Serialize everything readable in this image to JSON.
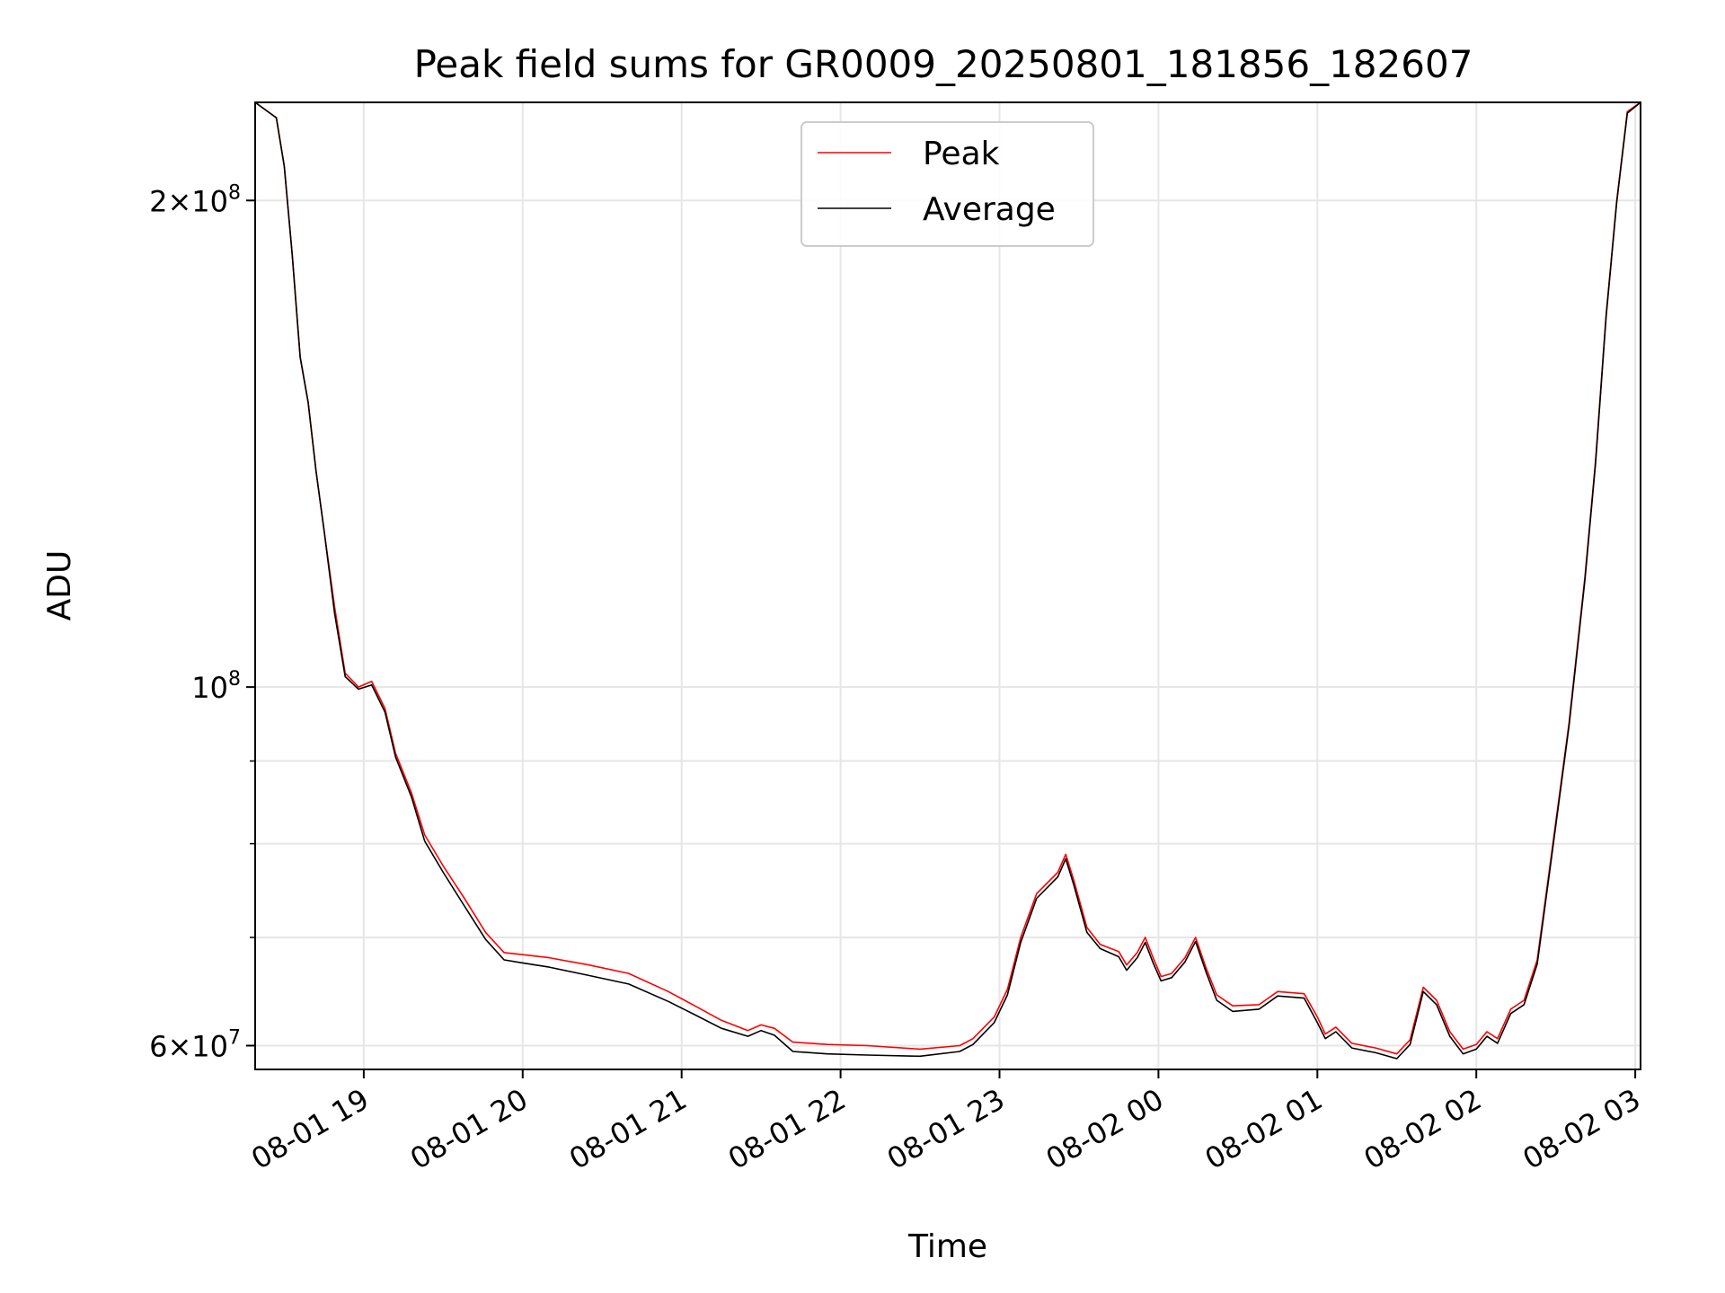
{
  "chart_data": {
    "type": "line",
    "title": "Peak field sums for GR0009_20250801_181856_182607",
    "xlabel": "Time",
    "ylabel": "ADU",
    "y_scale": "log",
    "xlim": [
      "2025-08-01 18:19",
      "2025-08-02 03:02"
    ],
    "ylim": [
      58000000,
      230000000
    ],
    "x_ticks": [
      "08-01 19",
      "08-01 20",
      "08-01 21",
      "08-01 22",
      "08-01 23",
      "08-02 00",
      "08-02 01",
      "08-02 02",
      "08-02 03"
    ],
    "x_tick_values": [
      "2025-08-01 19:00",
      "2025-08-01 20:00",
      "2025-08-01 21:00",
      "2025-08-01 22:00",
      "2025-08-01 23:00",
      "2025-08-02 00:00",
      "2025-08-02 01:00",
      "2025-08-02 02:00",
      "2025-08-02 03:00"
    ],
    "y_ticks_major": [
      {
        "value": 60000000,
        "mantissa": "6",
        "exp": "7"
      },
      {
        "value": 100000000,
        "mantissa": "",
        "exp": "8"
      },
      {
        "value": 200000000,
        "mantissa": "2",
        "exp": "8"
      }
    ],
    "y_gridlines_minor": [
      70000000,
      80000000,
      90000000
    ],
    "grid": true,
    "legend_position": "upper center",
    "series": [
      {
        "name": "Peak",
        "color": "#ff0000",
        "points": [
          [
            "2025-08-01 18:19",
            230000000
          ],
          [
            "2025-08-01 18:27",
            225000000
          ],
          [
            "2025-08-01 18:30",
            210000000
          ],
          [
            "2025-08-01 18:33",
            185000000
          ],
          [
            "2025-08-01 18:36",
            160000000
          ],
          [
            "2025-08-01 18:39",
            150000000
          ],
          [
            "2025-08-01 18:42",
            136000000
          ],
          [
            "2025-08-01 18:45",
            125000000
          ],
          [
            "2025-08-01 18:49",
            112000000
          ],
          [
            "2025-08-01 18:53",
            102000000
          ],
          [
            "2025-08-01 18:58",
            100000000
          ],
          [
            "2025-08-01 19:03",
            100800000
          ],
          [
            "2025-08-01 19:08",
            97000000
          ],
          [
            "2025-08-01 19:12",
            91000000
          ],
          [
            "2025-08-01 19:18",
            86000000
          ],
          [
            "2025-08-01 19:23",
            81000000
          ],
          [
            "2025-08-01 19:30",
            77500000
          ],
          [
            "2025-08-01 19:38",
            74000000
          ],
          [
            "2025-08-01 19:46",
            70500000
          ],
          [
            "2025-08-01 19:53",
            68500000
          ],
          [
            "2025-08-01 20:00",
            68300000
          ],
          [
            "2025-08-01 20:10",
            68000000
          ],
          [
            "2025-08-01 20:25",
            67300000
          ],
          [
            "2025-08-01 20:40",
            66500000
          ],
          [
            "2025-08-01 20:55",
            64800000
          ],
          [
            "2025-08-01 21:05",
            63500000
          ],
          [
            "2025-08-01 21:15",
            62200000
          ],
          [
            "2025-08-01 21:25",
            61300000
          ],
          [
            "2025-08-01 21:30",
            61800000
          ],
          [
            "2025-08-01 21:35",
            61500000
          ],
          [
            "2025-08-01 21:42",
            60300000
          ],
          [
            "2025-08-01 21:55",
            60100000
          ],
          [
            "2025-08-01 22:10",
            60000000
          ],
          [
            "2025-08-01 22:30",
            59700000
          ],
          [
            "2025-08-01 22:45",
            60000000
          ],
          [
            "2025-08-01 22:50",
            60600000
          ],
          [
            "2025-08-01 22:58",
            62500000
          ],
          [
            "2025-08-01 23:03",
            65000000
          ],
          [
            "2025-08-01 23:08",
            70000000
          ],
          [
            "2025-08-01 23:14",
            74500000
          ],
          [
            "2025-08-01 23:22",
            76800000
          ],
          [
            "2025-08-01 23:25",
            78800000
          ],
          [
            "2025-08-01 23:28",
            76000000
          ],
          [
            "2025-08-01 23:33",
            71000000
          ],
          [
            "2025-08-01 23:38",
            69300000
          ],
          [
            "2025-08-01 23:45",
            68600000
          ],
          [
            "2025-08-01 23:48",
            67300000
          ],
          [
            "2025-08-01 23:52",
            68500000
          ],
          [
            "2025-08-01 23:55",
            70000000
          ],
          [
            "2025-08-01 23:58",
            68000000
          ],
          [
            "2025-08-02 00:01",
            66200000
          ],
          [
            "2025-08-02 00:05",
            66500000
          ],
          [
            "2025-08-02 00:10",
            68000000
          ],
          [
            "2025-08-02 00:14",
            70000000
          ],
          [
            "2025-08-02 00:18",
            67000000
          ],
          [
            "2025-08-02 00:22",
            64500000
          ],
          [
            "2025-08-02 00:28",
            63500000
          ],
          [
            "2025-08-02 00:38",
            63600000
          ],
          [
            "2025-08-02 00:45",
            64800000
          ],
          [
            "2025-08-02 00:55",
            64600000
          ],
          [
            "2025-08-02 01:00",
            62500000
          ],
          [
            "2025-08-02 01:03",
            61000000
          ],
          [
            "2025-08-02 01:07",
            61600000
          ],
          [
            "2025-08-02 01:13",
            60200000
          ],
          [
            "2025-08-02 01:22",
            59800000
          ],
          [
            "2025-08-02 01:30",
            59300000
          ],
          [
            "2025-08-02 01:35",
            60500000
          ],
          [
            "2025-08-02 01:40",
            65200000
          ],
          [
            "2025-08-02 01:45",
            64000000
          ],
          [
            "2025-08-02 01:50",
            61200000
          ],
          [
            "2025-08-02 01:55",
            59700000
          ],
          [
            "2025-08-02 02:00",
            60100000
          ],
          [
            "2025-08-02 02:04",
            61200000
          ],
          [
            "2025-08-02 02:08",
            60600000
          ],
          [
            "2025-08-02 02:13",
            63200000
          ],
          [
            "2025-08-02 02:18",
            64000000
          ],
          [
            "2025-08-02 02:23",
            67800000
          ],
          [
            "2025-08-02 02:28",
            78000000
          ],
          [
            "2025-08-02 02:35",
            95000000
          ],
          [
            "2025-08-02 02:41",
            117000000
          ],
          [
            "2025-08-02 02:45",
            138000000
          ],
          [
            "2025-08-02 02:49",
            170000000
          ],
          [
            "2025-08-02 02:53",
            200000000
          ],
          [
            "2025-08-02 02:57",
            227000000
          ],
          [
            "2025-08-02 03:02",
            230000000
          ]
        ]
      },
      {
        "name": "Average",
        "color": "#000000",
        "points": [
          [
            "2025-08-01 18:19",
            230000000
          ],
          [
            "2025-08-01 18:27",
            225000000
          ],
          [
            "2025-08-01 18:30",
            210000000
          ],
          [
            "2025-08-01 18:33",
            185000000
          ],
          [
            "2025-08-01 18:36",
            160000000
          ],
          [
            "2025-08-01 18:39",
            150000000
          ],
          [
            "2025-08-01 18:42",
            136000000
          ],
          [
            "2025-08-01 18:45",
            125000000
          ],
          [
            "2025-08-01 18:49",
            111000000
          ],
          [
            "2025-08-01 18:53",
            101500000
          ],
          [
            "2025-08-01 18:58",
            99700000
          ],
          [
            "2025-08-01 19:03",
            100300000
          ],
          [
            "2025-08-01 19:08",
            96500000
          ],
          [
            "2025-08-01 19:12",
            90500000
          ],
          [
            "2025-08-01 19:18",
            85500000
          ],
          [
            "2025-08-01 19:23",
            80300000
          ],
          [
            "2025-08-01 19:30",
            76800000
          ],
          [
            "2025-08-01 19:38",
            73200000
          ],
          [
            "2025-08-01 19:46",
            69800000
          ],
          [
            "2025-08-01 19:53",
            67800000
          ],
          [
            "2025-08-01 20:00",
            67500000
          ],
          [
            "2025-08-01 20:10",
            67100000
          ],
          [
            "2025-08-01 20:25",
            66300000
          ],
          [
            "2025-08-01 20:40",
            65500000
          ],
          [
            "2025-08-01 20:55",
            63900000
          ],
          [
            "2025-08-01 21:05",
            62700000
          ],
          [
            "2025-08-01 21:15",
            61500000
          ],
          [
            "2025-08-01 21:25",
            60800000
          ],
          [
            "2025-08-01 21:30",
            61300000
          ],
          [
            "2025-08-01 21:35",
            60900000
          ],
          [
            "2025-08-01 21:42",
            59500000
          ],
          [
            "2025-08-01 21:55",
            59300000
          ],
          [
            "2025-08-01 22:10",
            59200000
          ],
          [
            "2025-08-01 22:30",
            59100000
          ],
          [
            "2025-08-01 22:45",
            59500000
          ],
          [
            "2025-08-01 22:50",
            60100000
          ],
          [
            "2025-08-01 22:58",
            62000000
          ],
          [
            "2025-08-01 23:03",
            64500000
          ],
          [
            "2025-08-01 23:08",
            69500000
          ],
          [
            "2025-08-01 23:14",
            74000000
          ],
          [
            "2025-08-01 23:22",
            76300000
          ],
          [
            "2025-08-01 23:25",
            78300000
          ],
          [
            "2025-08-01 23:28",
            75500000
          ],
          [
            "2025-08-01 23:33",
            70500000
          ],
          [
            "2025-08-01 23:38",
            68900000
          ],
          [
            "2025-08-01 23:45",
            68100000
          ],
          [
            "2025-08-01 23:48",
            66800000
          ],
          [
            "2025-08-01 23:52",
            68000000
          ],
          [
            "2025-08-01 23:55",
            69500000
          ],
          [
            "2025-08-01 23:58",
            67500000
          ],
          [
            "2025-08-02 00:01",
            65800000
          ],
          [
            "2025-08-02 00:05",
            66100000
          ],
          [
            "2025-08-02 00:10",
            67600000
          ],
          [
            "2025-08-02 00:14",
            69600000
          ],
          [
            "2025-08-02 00:18",
            66600000
          ],
          [
            "2025-08-02 00:22",
            64000000
          ],
          [
            "2025-08-02 00:28",
            63000000
          ],
          [
            "2025-08-02 00:38",
            63200000
          ],
          [
            "2025-08-02 00:45",
            64400000
          ],
          [
            "2025-08-02 00:55",
            64200000
          ],
          [
            "2025-08-02 01:00",
            62000000
          ],
          [
            "2025-08-02 01:03",
            60600000
          ],
          [
            "2025-08-02 01:07",
            61200000
          ],
          [
            "2025-08-02 01:13",
            59800000
          ],
          [
            "2025-08-02 01:22",
            59400000
          ],
          [
            "2025-08-02 01:30",
            58900000
          ],
          [
            "2025-08-02 01:35",
            60100000
          ],
          [
            "2025-08-02 01:40",
            64800000
          ],
          [
            "2025-08-02 01:45",
            63600000
          ],
          [
            "2025-08-02 01:50",
            60800000
          ],
          [
            "2025-08-02 01:55",
            59300000
          ],
          [
            "2025-08-02 02:00",
            59700000
          ],
          [
            "2025-08-02 02:04",
            60800000
          ],
          [
            "2025-08-02 02:08",
            60200000
          ],
          [
            "2025-08-02 02:13",
            62800000
          ],
          [
            "2025-08-02 02:18",
            63600000
          ],
          [
            "2025-08-02 02:23",
            67400000
          ],
          [
            "2025-08-02 02:28",
            77600000
          ],
          [
            "2025-08-02 02:35",
            94600000
          ],
          [
            "2025-08-02 02:41",
            116500000
          ],
          [
            "2025-08-02 02:45",
            137500000
          ],
          [
            "2025-08-02 02:49",
            169500000
          ],
          [
            "2025-08-02 02:53",
            199500000
          ],
          [
            "2025-08-02 02:57",
            226500000
          ],
          [
            "2025-08-02 03:02",
            230000000
          ]
        ]
      }
    ]
  }
}
